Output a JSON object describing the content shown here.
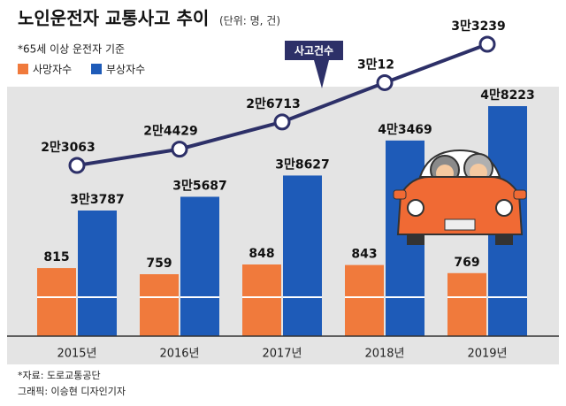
{
  "chart_data": {
    "type": "bar",
    "title": "노인운전자 교통사고 추이",
    "subtitle": "(단위: 명, 건)",
    "note": "*65세 이상 운전자 기준",
    "categories": [
      "2015년",
      "2016년",
      "2017년",
      "2018년",
      "2019년"
    ],
    "series": [
      {
        "name": "사망자수",
        "color": "#f07a3c",
        "values": [
          815,
          759,
          848,
          843,
          769
        ]
      },
      {
        "name": "부상자수",
        "color": "#1e5bb8",
        "values": [
          33787,
          35687,
          38627,
          43469,
          48223
        ],
        "value_labels": [
          "3만3787",
          "3만5687",
          "3만8627",
          "4만3469",
          "4만8223"
        ]
      },
      {
        "name": "사고건수",
        "type": "line",
        "color": "#2d3068",
        "values": [
          23063,
          24429,
          26713,
          30012,
          33239
        ],
        "value_labels": [
          "2만3063",
          "2만4429",
          "2만6713",
          "3만12",
          "3만3239"
        ]
      }
    ],
    "source": "*자료: 도로교통공단",
    "credit": "그래픽: 이승현 디자인기자"
  }
}
